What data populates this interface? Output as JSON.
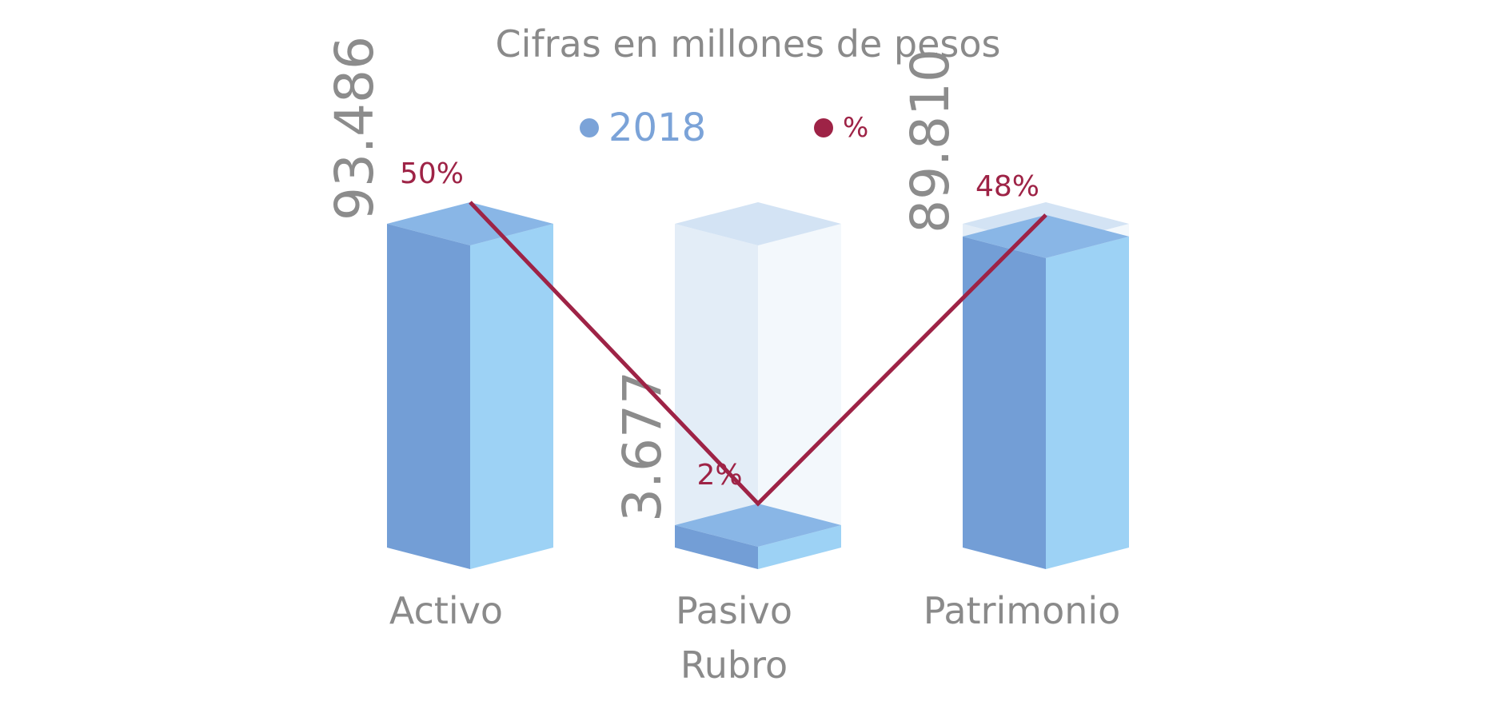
{
  "title": "Cifras en millones de pesos",
  "legend": [
    {
      "label": "2018",
      "color": "#7ba3d8"
    },
    {
      "label": "%",
      "color": "#9e2346"
    }
  ],
  "chart_data": {
    "type": "bar",
    "title": "Cifras en millones de pesos",
    "xlabel": "Rubro",
    "ylabel": "",
    "categories": [
      "Activo",
      "Pasivo",
      "Patrimonio"
    ],
    "series": [
      {
        "name": "2018",
        "type": "bar",
        "values": [
          93486,
          3677,
          89810
        ],
        "labels": [
          "93.486",
          "3.677",
          "89.810"
        ],
        "color": "#7ba3d8"
      },
      {
        "name": "%",
        "type": "line",
        "values": [
          50,
          2,
          48
        ],
        "labels": [
          "50%",
          "2%",
          "48%"
        ],
        "color": "#9e2346"
      }
    ]
  }
}
